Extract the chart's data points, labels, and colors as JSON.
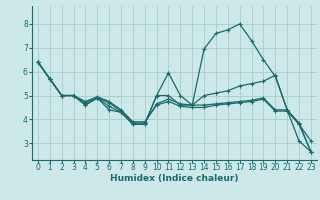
{
  "xlabel": "Humidex (Indice chaleur)",
  "background_color": "#cce8e8",
  "grid_color": "#aacccc",
  "line_color": "#1a6b6b",
  "xlim": [
    -0.5,
    23.5
  ],
  "ylim": [
    2.3,
    8.75
  ],
  "xticks": [
    0,
    1,
    2,
    3,
    4,
    5,
    6,
    7,
    8,
    9,
    10,
    11,
    12,
    13,
    14,
    15,
    16,
    17,
    18,
    19,
    20,
    21,
    22,
    23
  ],
  "yticks": [
    3,
    4,
    5,
    6,
    7,
    8
  ],
  "curves": [
    [
      6.4,
      5.7,
      5.0,
      5.0,
      4.6,
      4.9,
      4.4,
      4.3,
      3.8,
      3.8,
      5.0,
      5.95,
      5.0,
      4.6,
      6.95,
      7.6,
      7.75,
      8.0,
      7.3,
      6.5,
      5.8,
      4.4,
      3.8,
      3.1
    ],
    [
      6.4,
      5.7,
      5.0,
      5.0,
      4.6,
      4.9,
      4.55,
      4.3,
      3.8,
      3.8,
      5.0,
      5.0,
      4.6,
      4.6,
      5.0,
      5.1,
      5.2,
      5.4,
      5.5,
      5.6,
      5.85,
      4.4,
      3.1,
      2.65
    ],
    [
      6.4,
      5.7,
      5.0,
      5.0,
      4.7,
      4.9,
      4.7,
      4.35,
      3.85,
      3.85,
      4.65,
      4.85,
      4.65,
      4.6,
      4.6,
      4.65,
      4.7,
      4.75,
      4.8,
      4.9,
      4.4,
      4.4,
      3.85,
      2.65
    ],
    [
      6.4,
      5.7,
      5.0,
      5.0,
      4.75,
      4.95,
      4.75,
      4.4,
      3.9,
      3.9,
      4.6,
      4.75,
      4.55,
      4.5,
      4.5,
      4.6,
      4.65,
      4.7,
      4.75,
      4.85,
      4.35,
      4.35,
      3.8,
      2.65
    ]
  ],
  "tick_fontsize": 5.5,
  "xlabel_fontsize": 6.5,
  "marker_size": 2.5,
  "linewidth": 0.9
}
